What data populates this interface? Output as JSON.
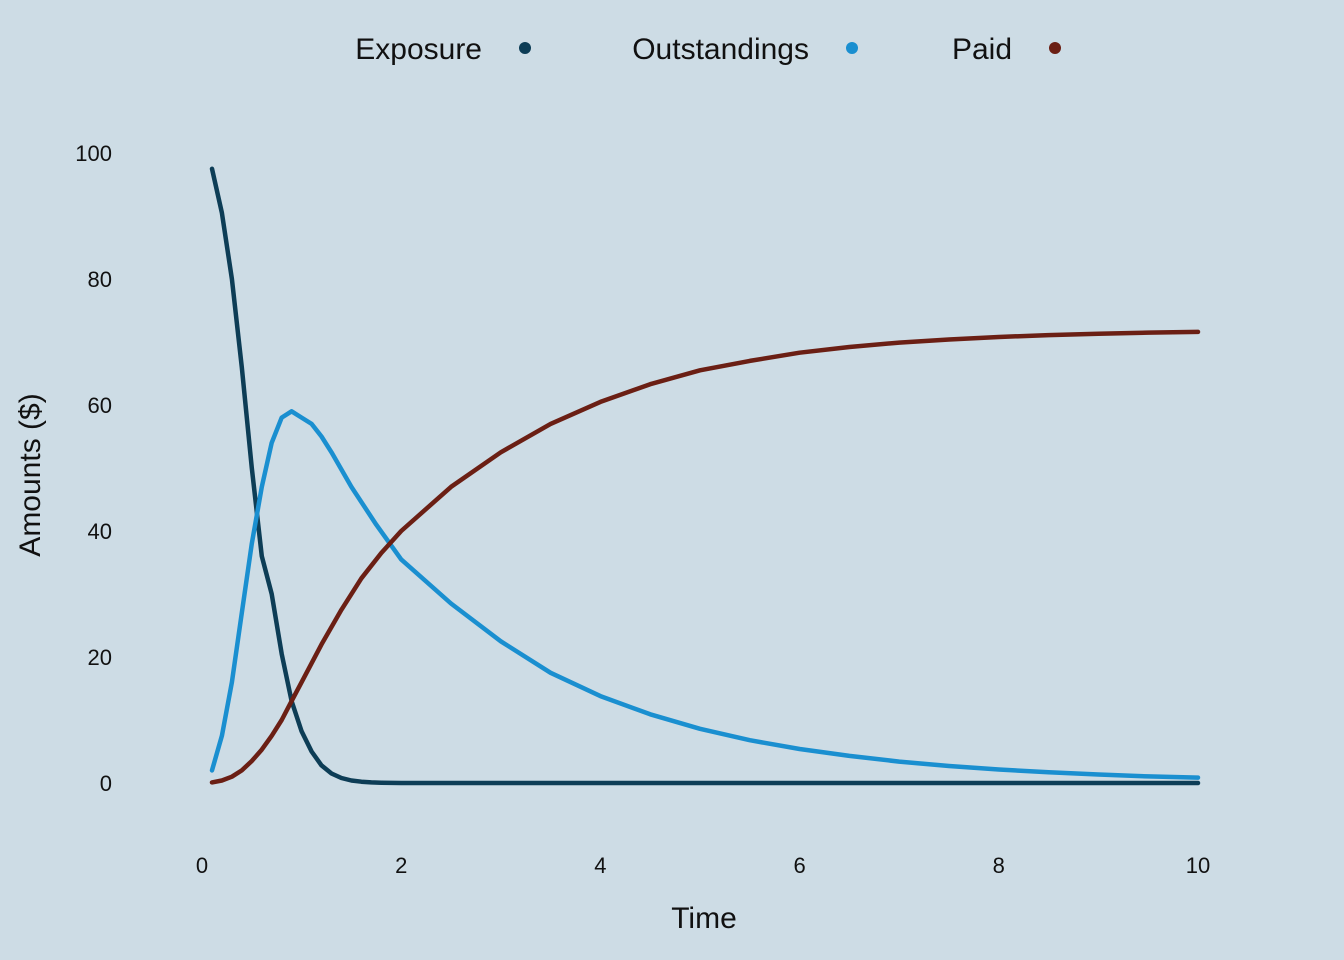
{
  "chart_data": {
    "type": "line",
    "title": "",
    "xlabel": "Time",
    "ylabel": "Amounts ($)",
    "xlim": [
      0,
      10
    ],
    "ylim": [
      0,
      100
    ],
    "x_ticks": [
      0,
      2,
      4,
      6,
      8,
      10
    ],
    "y_ticks": [
      0,
      20,
      40,
      60,
      80,
      100
    ],
    "grid": false,
    "legend_position": "top",
    "background_color": "#cddce5",
    "series": [
      {
        "name": "Exposure",
        "color": "#0d3d56",
        "x": [
          0.1,
          0.2,
          0.3,
          0.4,
          0.5,
          0.6,
          0.7,
          0.8,
          0.9,
          1.0,
          1.1,
          1.2,
          1.3,
          1.4,
          1.5,
          1.6,
          1.7,
          1.8,
          2.0,
          3.0,
          4.0,
          5.0,
          6.0,
          7.0,
          8.0,
          9.0,
          10.0
        ],
        "y": [
          97.5,
          90.5,
          80,
          66,
          50,
          36,
          30,
          20.5,
          13,
          8.2,
          5,
          2.8,
          1.5,
          0.8,
          0.4,
          0.2,
          0.1,
          0.05,
          0,
          0,
          0,
          0,
          0,
          0,
          0,
          0,
          0
        ]
      },
      {
        "name": "Outstandings",
        "color": "#1a8fd0",
        "x": [
          0.1,
          0.2,
          0.3,
          0.4,
          0.5,
          0.6,
          0.7,
          0.8,
          0.9,
          1.0,
          1.1,
          1.2,
          1.3,
          1.5,
          1.75,
          2.0,
          2.5,
          3.0,
          3.5,
          4.0,
          4.5,
          5.0,
          5.5,
          6.0,
          6.5,
          7.0,
          7.5,
          8.0,
          8.5,
          9.0,
          9.5,
          10.0
        ],
        "y": [
          2,
          7.5,
          16,
          27,
          38,
          47,
          54,
          58,
          59,
          58,
          57,
          55,
          52.5,
          47,
          41,
          35.5,
          28.5,
          22.5,
          17.5,
          13.8,
          10.9,
          8.6,
          6.8,
          5.4,
          4.3,
          3.4,
          2.7,
          2.15,
          1.7,
          1.35,
          1.05,
          0.85
        ]
      },
      {
        "name": "Paid",
        "color": "#6b1f14",
        "x": [
          0.1,
          0.2,
          0.3,
          0.4,
          0.5,
          0.6,
          0.7,
          0.8,
          0.9,
          1.0,
          1.2,
          1.4,
          1.6,
          1.8,
          2.0,
          2.5,
          3.0,
          3.5,
          4.0,
          4.5,
          5.0,
          5.5,
          6.0,
          6.5,
          7.0,
          7.5,
          8.0,
          8.5,
          9.0,
          9.5,
          10.0
        ],
        "y": [
          0.1,
          0.4,
          1,
          2,
          3.5,
          5.3,
          7.5,
          10,
          13,
          16,
          22,
          27.5,
          32.5,
          36.5,
          40,
          47,
          52.5,
          57,
          60.5,
          63.3,
          65.5,
          67,
          68.3,
          69.2,
          69.9,
          70.4,
          70.8,
          71.1,
          71.3,
          71.5,
          71.6
        ]
      }
    ]
  }
}
